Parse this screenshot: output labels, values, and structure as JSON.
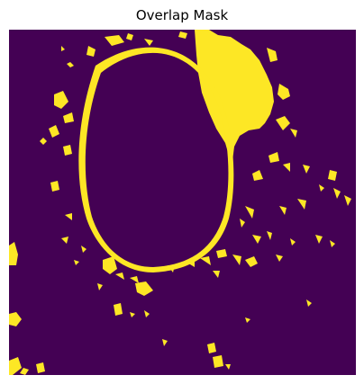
{
  "figure": {
    "title": "Overlap Mask"
  },
  "mask": {
    "background_color": "#440154",
    "foreground_color": "#fde725"
  }
}
